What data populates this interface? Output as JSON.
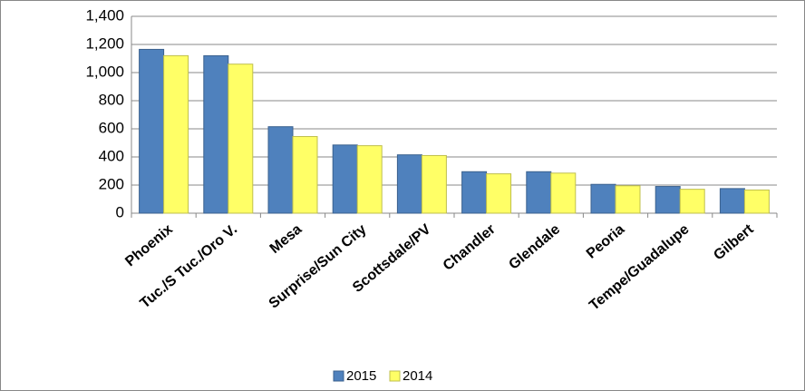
{
  "chart_data": {
    "type": "bar",
    "categories": [
      "Phoenix",
      "Tuc./S Tuc./Oro V.",
      "Mesa",
      "Surprise/Sun City",
      "Scottsdale/PV",
      "Chandler",
      "Glendale",
      "Peoria",
      "Tempe/Guadalupe",
      "Gilbert"
    ],
    "series": [
      {
        "name": "2015",
        "color": "#4f81bd",
        "values": [
          1165,
          1120,
          615,
          485,
          415,
          295,
          295,
          205,
          190,
          175
        ]
      },
      {
        "name": "2014",
        "color": "#ffff66",
        "values": [
          1120,
          1060,
          545,
          480,
          410,
          280,
          285,
          195,
          170,
          165
        ]
      }
    ],
    "ylim": [
      0,
      1400
    ],
    "yticks": [
      0,
      200,
      400,
      600,
      800,
      {
        "value": 1000,
        "label": "1,000"
      },
      {
        "value": 1200,
        "label": "1,200"
      },
      {
        "value": 1400,
        "label": "1,400"
      }
    ],
    "grid": true,
    "legend": "bottom"
  }
}
